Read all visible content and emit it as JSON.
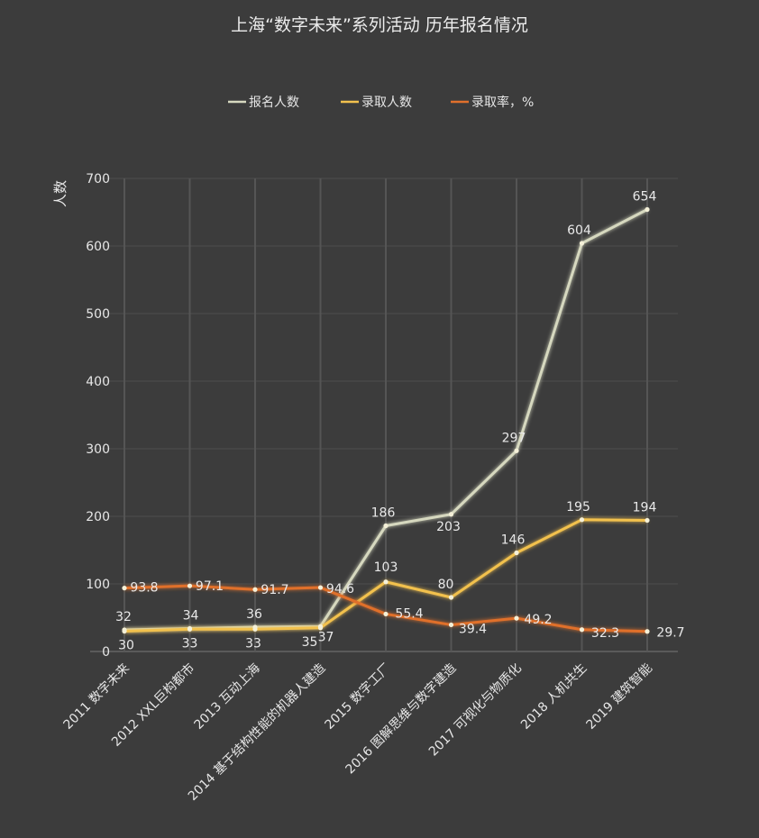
{
  "chart_data": {
    "type": "line",
    "title": "上海“数字未来”系列活动  历年报名情况",
    "ylabel": "人数",
    "xlabel": "",
    "ylim": [
      0,
      700
    ],
    "yticks": [
      "0",
      "100",
      "200",
      "300",
      "400",
      "500",
      "600",
      "700"
    ],
    "grid": true,
    "legend_position": "top-center",
    "categories": [
      "2011  数字未来",
      "2012  XXL巨构都市",
      "2013  互动上海",
      "2014  基于结构性能的机器人建造",
      "2015  数字工厂",
      "2016  图解思维与数字建造",
      "2017  可视化与物质化",
      "2018  人机共生",
      "2019  建筑智能"
    ],
    "series": [
      {
        "name": "报名人数",
        "color": "#d6d8bf",
        "values": [
          32,
          34,
          36,
          37,
          186,
          203,
          297,
          604,
          654
        ],
        "labels": [
          "32",
          "34",
          "36",
          "37",
          "186",
          "203",
          "297",
          "604",
          "654"
        ]
      },
      {
        "name": "录取人数",
        "color": "#f2c14e",
        "values": [
          30,
          33,
          33,
          35,
          103,
          80,
          146,
          195,
          194
        ],
        "labels": [
          "30",
          "33",
          "33",
          "35",
          "103",
          "80",
          "146",
          "195",
          "194"
        ]
      },
      {
        "name": "录取率，%",
        "color": "#e0702c",
        "values": [
          93.8,
          97.1,
          91.7,
          94.6,
          55.4,
          39.4,
          49.2,
          32.3,
          29.7
        ],
        "labels": [
          "93.8",
          "97.1",
          "91.7",
          "94.6",
          "55.4",
          "39.4",
          "49.2",
          "32.3",
          "29.7"
        ]
      }
    ]
  }
}
